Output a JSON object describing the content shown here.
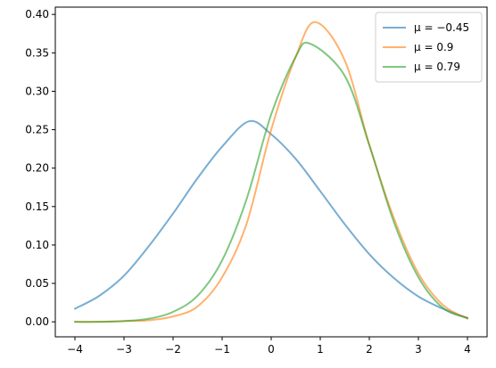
{
  "chart_data": {
    "type": "line",
    "xlim": [
      -4.4,
      4.4
    ],
    "ylim": [
      -0.0195,
      0.4095
    ],
    "xticks": [
      -4,
      -3,
      -2,
      -1,
      0,
      1,
      2,
      3,
      4
    ],
    "xtick_labels": [
      "−4",
      "−3",
      "−2",
      "−1",
      "0",
      "1",
      "2",
      "3",
      "4"
    ],
    "yticks": [
      0.0,
      0.05,
      0.1,
      0.15,
      0.2,
      0.25,
      0.3,
      0.35,
      0.4
    ],
    "ytick_labels": [
      "0.00",
      "0.05",
      "0.10",
      "0.15",
      "0.20",
      "0.25",
      "0.30",
      "0.35",
      "0.40"
    ],
    "grid": false,
    "legend": "top-right",
    "series": [
      {
        "name": "μ = −0.45",
        "color": "#1f77b4",
        "x": [
          -4,
          -3.5,
          -3,
          -2.5,
          -2,
          -1.5,
          -1,
          -0.45,
          0,
          0.5,
          1,
          1.5,
          2,
          2.5,
          3,
          3.5,
          4
        ],
        "y": [
          0.017,
          0.034,
          0.06,
          0.098,
          0.141,
          0.187,
          0.228,
          0.261,
          0.244,
          0.212,
          0.17,
          0.127,
          0.088,
          0.057,
          0.033,
          0.017,
          0.005
        ]
      },
      {
        "name": "μ = 0.9",
        "color": "#ff7f0e",
        "x": [
          -4,
          -3.5,
          -3,
          -2.5,
          -2,
          -1.5,
          -1,
          -0.5,
          0,
          0.5,
          0.9,
          1.5,
          2,
          2.5,
          3,
          3.5,
          4
        ],
        "y": [
          0.0,
          0.0,
          0.001,
          0.002,
          0.007,
          0.02,
          0.058,
          0.128,
          0.25,
          0.345,
          0.39,
          0.34,
          0.23,
          0.135,
          0.063,
          0.022,
          0.004
        ]
      },
      {
        "name": "μ = 0.79",
        "color": "#2ca02c",
        "x": [
          -4,
          -3.5,
          -3,
          -2.5,
          -2,
          -1.5,
          -1,
          -0.5,
          0,
          0.5,
          0.79,
          1.5,
          2,
          2.5,
          3,
          3.5,
          4
        ],
        "y": [
          0.0,
          0.0,
          0.001,
          0.004,
          0.013,
          0.034,
          0.08,
          0.16,
          0.27,
          0.345,
          0.362,
          0.32,
          0.23,
          0.13,
          0.058,
          0.018,
          0.005
        ]
      }
    ]
  }
}
